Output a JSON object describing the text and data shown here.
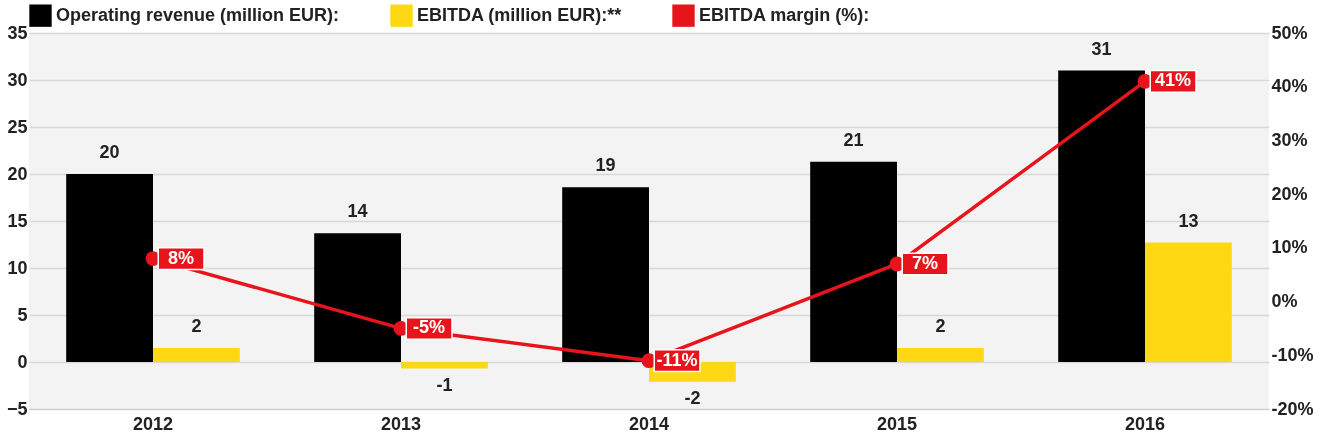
{
  "chart_data": {
    "type": "bar",
    "categories": [
      "2012",
      "2013",
      "2014",
      "2015",
      "2016"
    ],
    "series": [
      {
        "name": "Operating revenue (million EUR):",
        "color": "#000000",
        "values": [
          20.0,
          13.7,
          18.6,
          21.3,
          31.0
        ],
        "value_labels": [
          "20",
          "14",
          "19",
          "21",
          "31"
        ]
      },
      {
        "name": "EBITDA (million EUR):**",
        "color": "#ffd814",
        "values": [
          1.5,
          -0.7,
          -2.1,
          1.5,
          12.7
        ],
        "value_labels": [
          "2",
          "-1",
          "-2",
          "2",
          "13"
        ]
      },
      {
        "name": "EBITDA margin (%):",
        "type": "line",
        "axis": "y2",
        "color": "#e8141c",
        "values": [
          8,
          -5,
          -11,
          7,
          41
        ],
        "value_labels": [
          "8%",
          "-5%",
          "-11%",
          "7%",
          "41%"
        ]
      }
    ],
    "ylim": [
      -5,
      35
    ],
    "yticks": [
      -5,
      0,
      5,
      10,
      15,
      20,
      25,
      30,
      35
    ],
    "y2lim": [
      -20,
      50
    ],
    "y2ticks": [
      {
        "value": -20,
        "label": "-20%"
      },
      {
        "value": -10,
        "label": "-10%"
      },
      {
        "value": 0,
        "label": "0%"
      },
      {
        "value": 10,
        "label": "10%"
      },
      {
        "value": 20,
        "label": "20%"
      },
      {
        "value": 30,
        "label": "30%"
      },
      {
        "value": 40,
        "label": "40%"
      },
      {
        "value": 50,
        "label": "50%"
      }
    ],
    "grid": "y",
    "legend": "top",
    "marker": "circle"
  }
}
